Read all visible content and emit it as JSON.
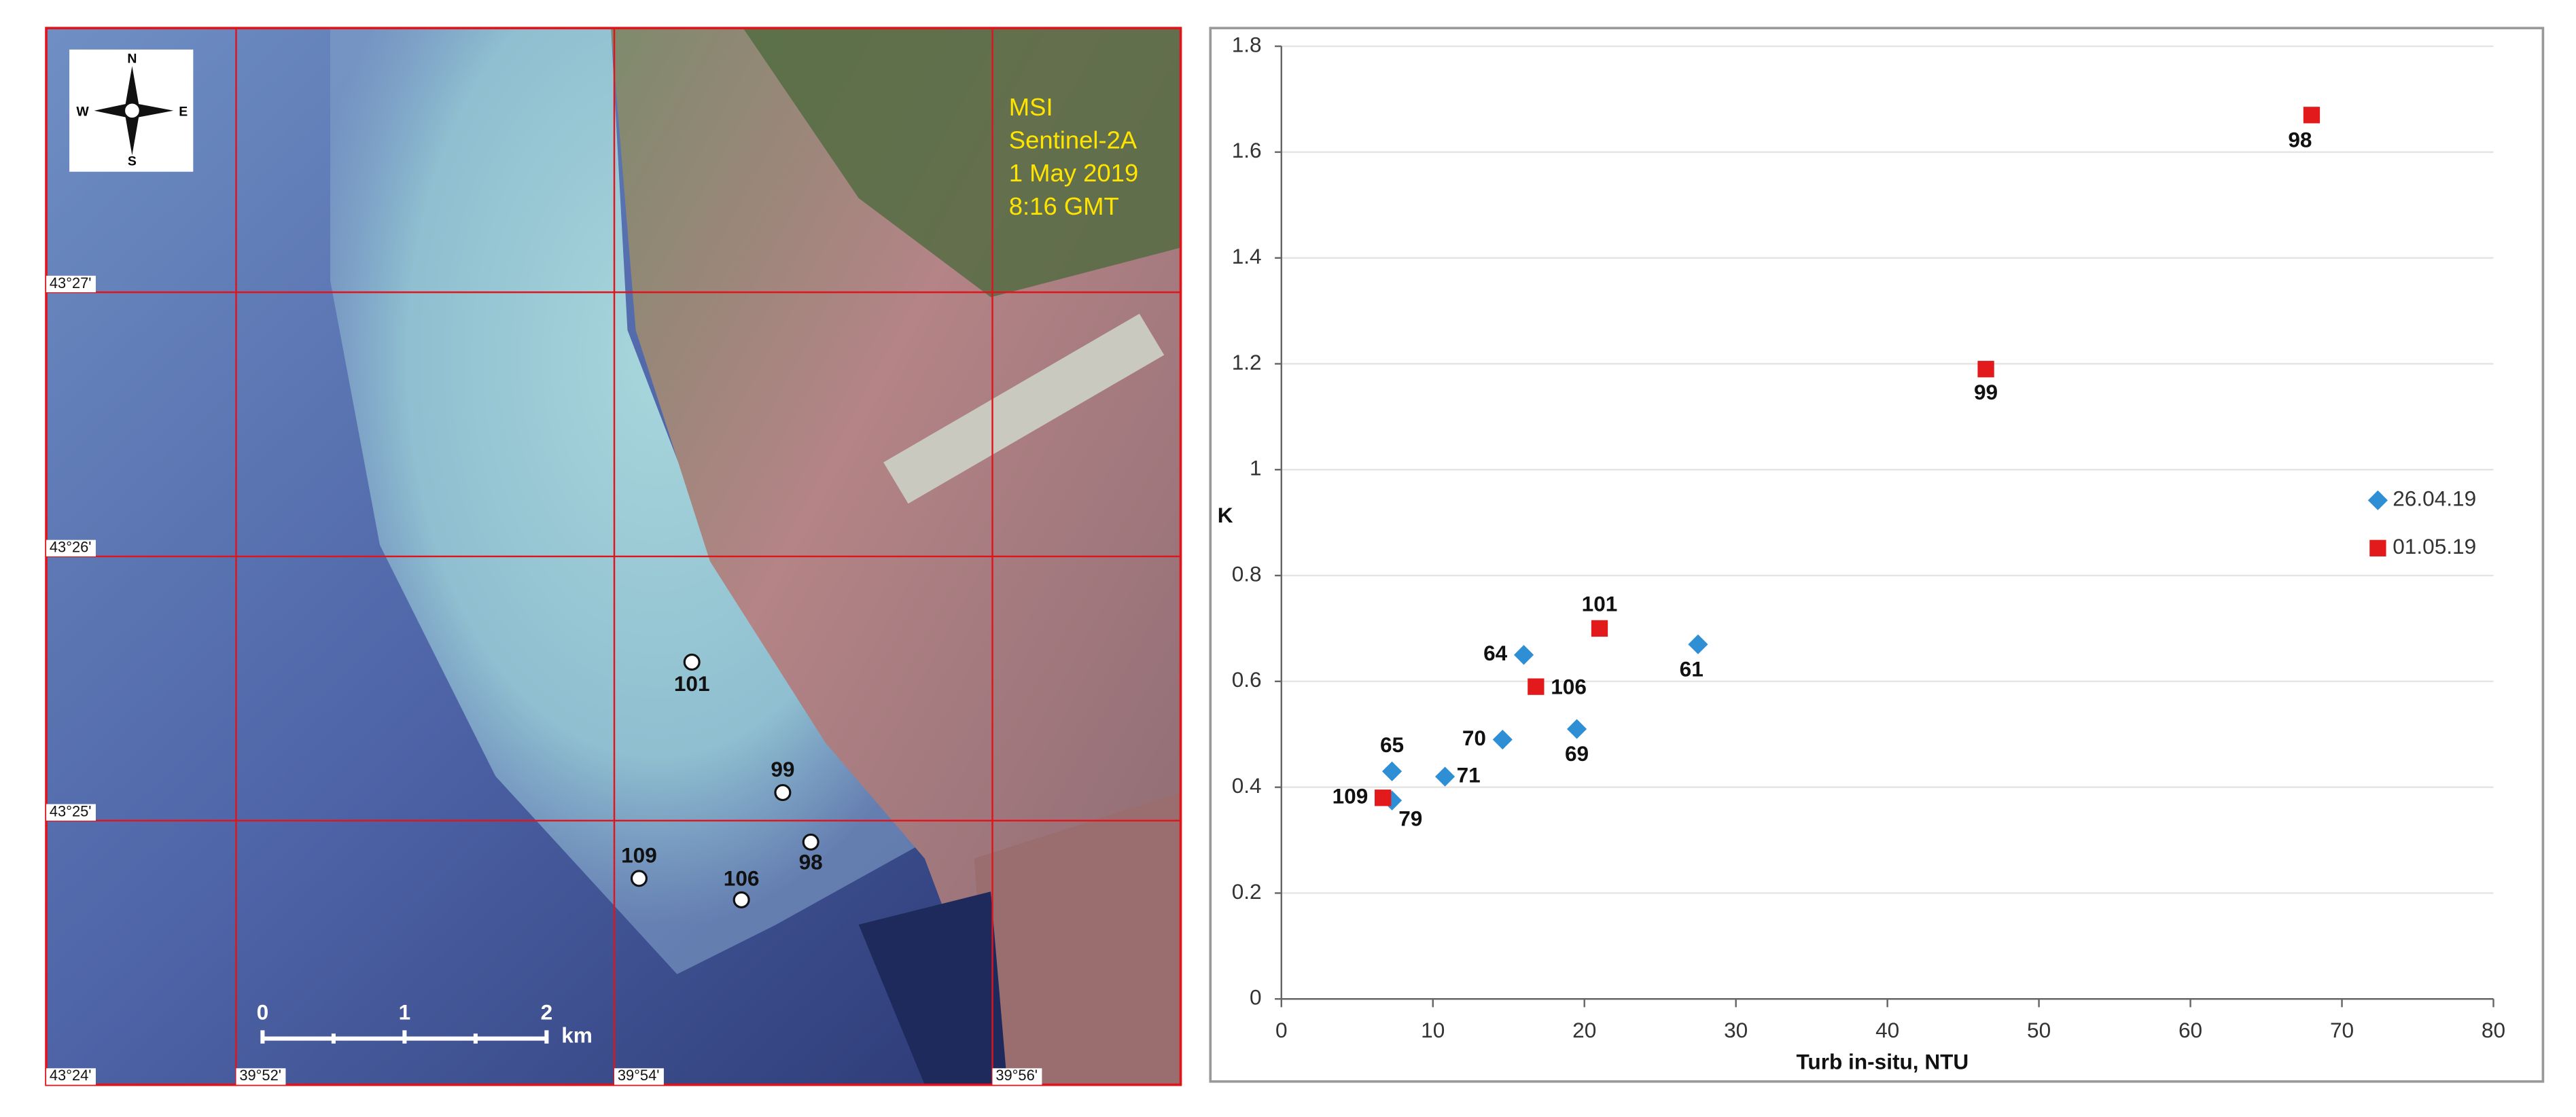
{
  "chart_data": {
    "type": "scatter",
    "xlabel": "Turb in-situ, NTU",
    "ylabel": "K",
    "xlim": [
      0,
      80
    ],
    "xticks": [
      0,
      10,
      20,
      30,
      40,
      50,
      60,
      70,
      80
    ],
    "ylim": [
      0,
      1.8
    ],
    "yticks": [
      0,
      0.2,
      0.4,
      0.6,
      0.8,
      1,
      1.2,
      1.4,
      1.6,
      1.8
    ],
    "grid": true,
    "legend": "right",
    "series": [
      {
        "name": "26.04.19",
        "color": "#2e8fd4",
        "marker": "diamond",
        "x": [
          16,
          27.5,
          14.6,
          19.5,
          7.3,
          10.8,
          7.3
        ],
        "y": [
          0.65,
          0.67,
          0.49,
          0.51,
          0.43,
          0.42,
          0.375
        ],
        "point_labels": [
          "64",
          "61",
          "70",
          "69",
          "65",
          "71",
          "79"
        ]
      },
      {
        "name": "01.05.19",
        "color": "#e31a1c",
        "marker": "square",
        "x": [
          68,
          46.5,
          21,
          16.8,
          6.7
        ],
        "y": [
          1.67,
          1.19,
          0.7,
          0.59,
          0.38
        ],
        "point_labels": [
          "98",
          "99",
          "101",
          "106",
          "109"
        ]
      }
    ]
  },
  "map": {
    "compass": [
      "N",
      "E",
      "S",
      "W"
    ],
    "caption": [
      "MSI",
      "Sentinel-2A",
      "1 May 2019",
      "8:16 GMT"
    ],
    "latitudes": [
      "43°27'",
      "43°26'",
      "43°25'",
      "43°24'"
    ],
    "longitudes": [
      "39°52'",
      "39°54'",
      "39°56'"
    ],
    "scale": [
      "0",
      "1",
      "2"
    ],
    "scale_unit": "km",
    "stations": [
      "101",
      "99",
      "98",
      "109",
      "106"
    ]
  }
}
